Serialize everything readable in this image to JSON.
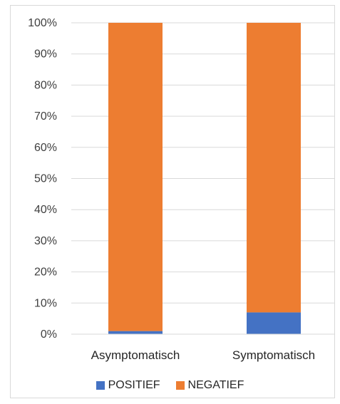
{
  "chart_data": {
    "type": "bar",
    "stacked": true,
    "percent": true,
    "categories": [
      "Asymptomatisch",
      "Symptomatisch"
    ],
    "series": [
      {
        "name": "POSITIEF",
        "values": [
          1,
          7
        ],
        "color": "#4472c4"
      },
      {
        "name": "NEGATIEF",
        "values": [
          99,
          93
        ],
        "color": "#ed7d31"
      }
    ],
    "ylim": [
      0,
      100
    ],
    "yticks": [
      "0%",
      "10%",
      "20%",
      "30%",
      "40%",
      "50%",
      "60%",
      "70%",
      "80%",
      "90%",
      "100%"
    ],
    "grid": true,
    "legend_position": "bottom"
  }
}
